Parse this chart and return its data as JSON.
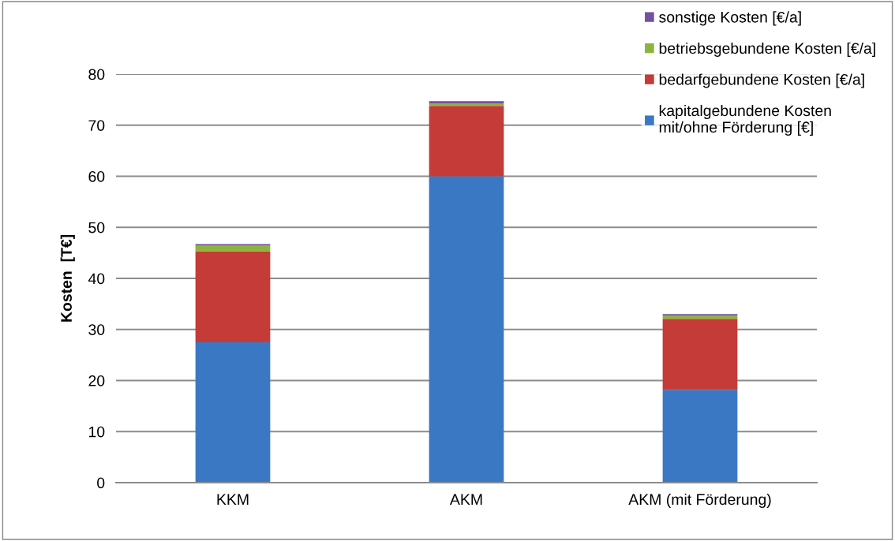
{
  "chart_data": {
    "type": "bar",
    "stacked": true,
    "ylabel": "Kosten  [T€]",
    "categories": [
      "KKM",
      "AKM",
      "AKM (mit Förderung)"
    ],
    "series": [
      {
        "name": "kapitalgebundene Kosten\nmit/ohne Förderung [€]",
        "color": "#3a78c4",
        "values": [
          27.5,
          60,
          18.2
        ]
      },
      {
        "name": "bedarfgebundene Kosten [€/a]",
        "color": "#c43b38",
        "values": [
          17.8,
          13.8,
          13.9
        ]
      },
      {
        "name": "betriebsgebundene Kosten [€/a]",
        "color": "#8cb43c",
        "values": [
          1.1,
          0.5,
          0.6
        ]
      },
      {
        "name": "sonstige Kosten [€/a]",
        "color": "#7450a0",
        "values": [
          0.3,
          0.4,
          0.3
        ]
      }
    ],
    "ylim": [
      0,
      80
    ],
    "yticks": [
      0,
      10,
      20,
      30,
      40,
      50,
      60,
      70,
      80
    ],
    "grid": "y",
    "legend": "top right"
  }
}
